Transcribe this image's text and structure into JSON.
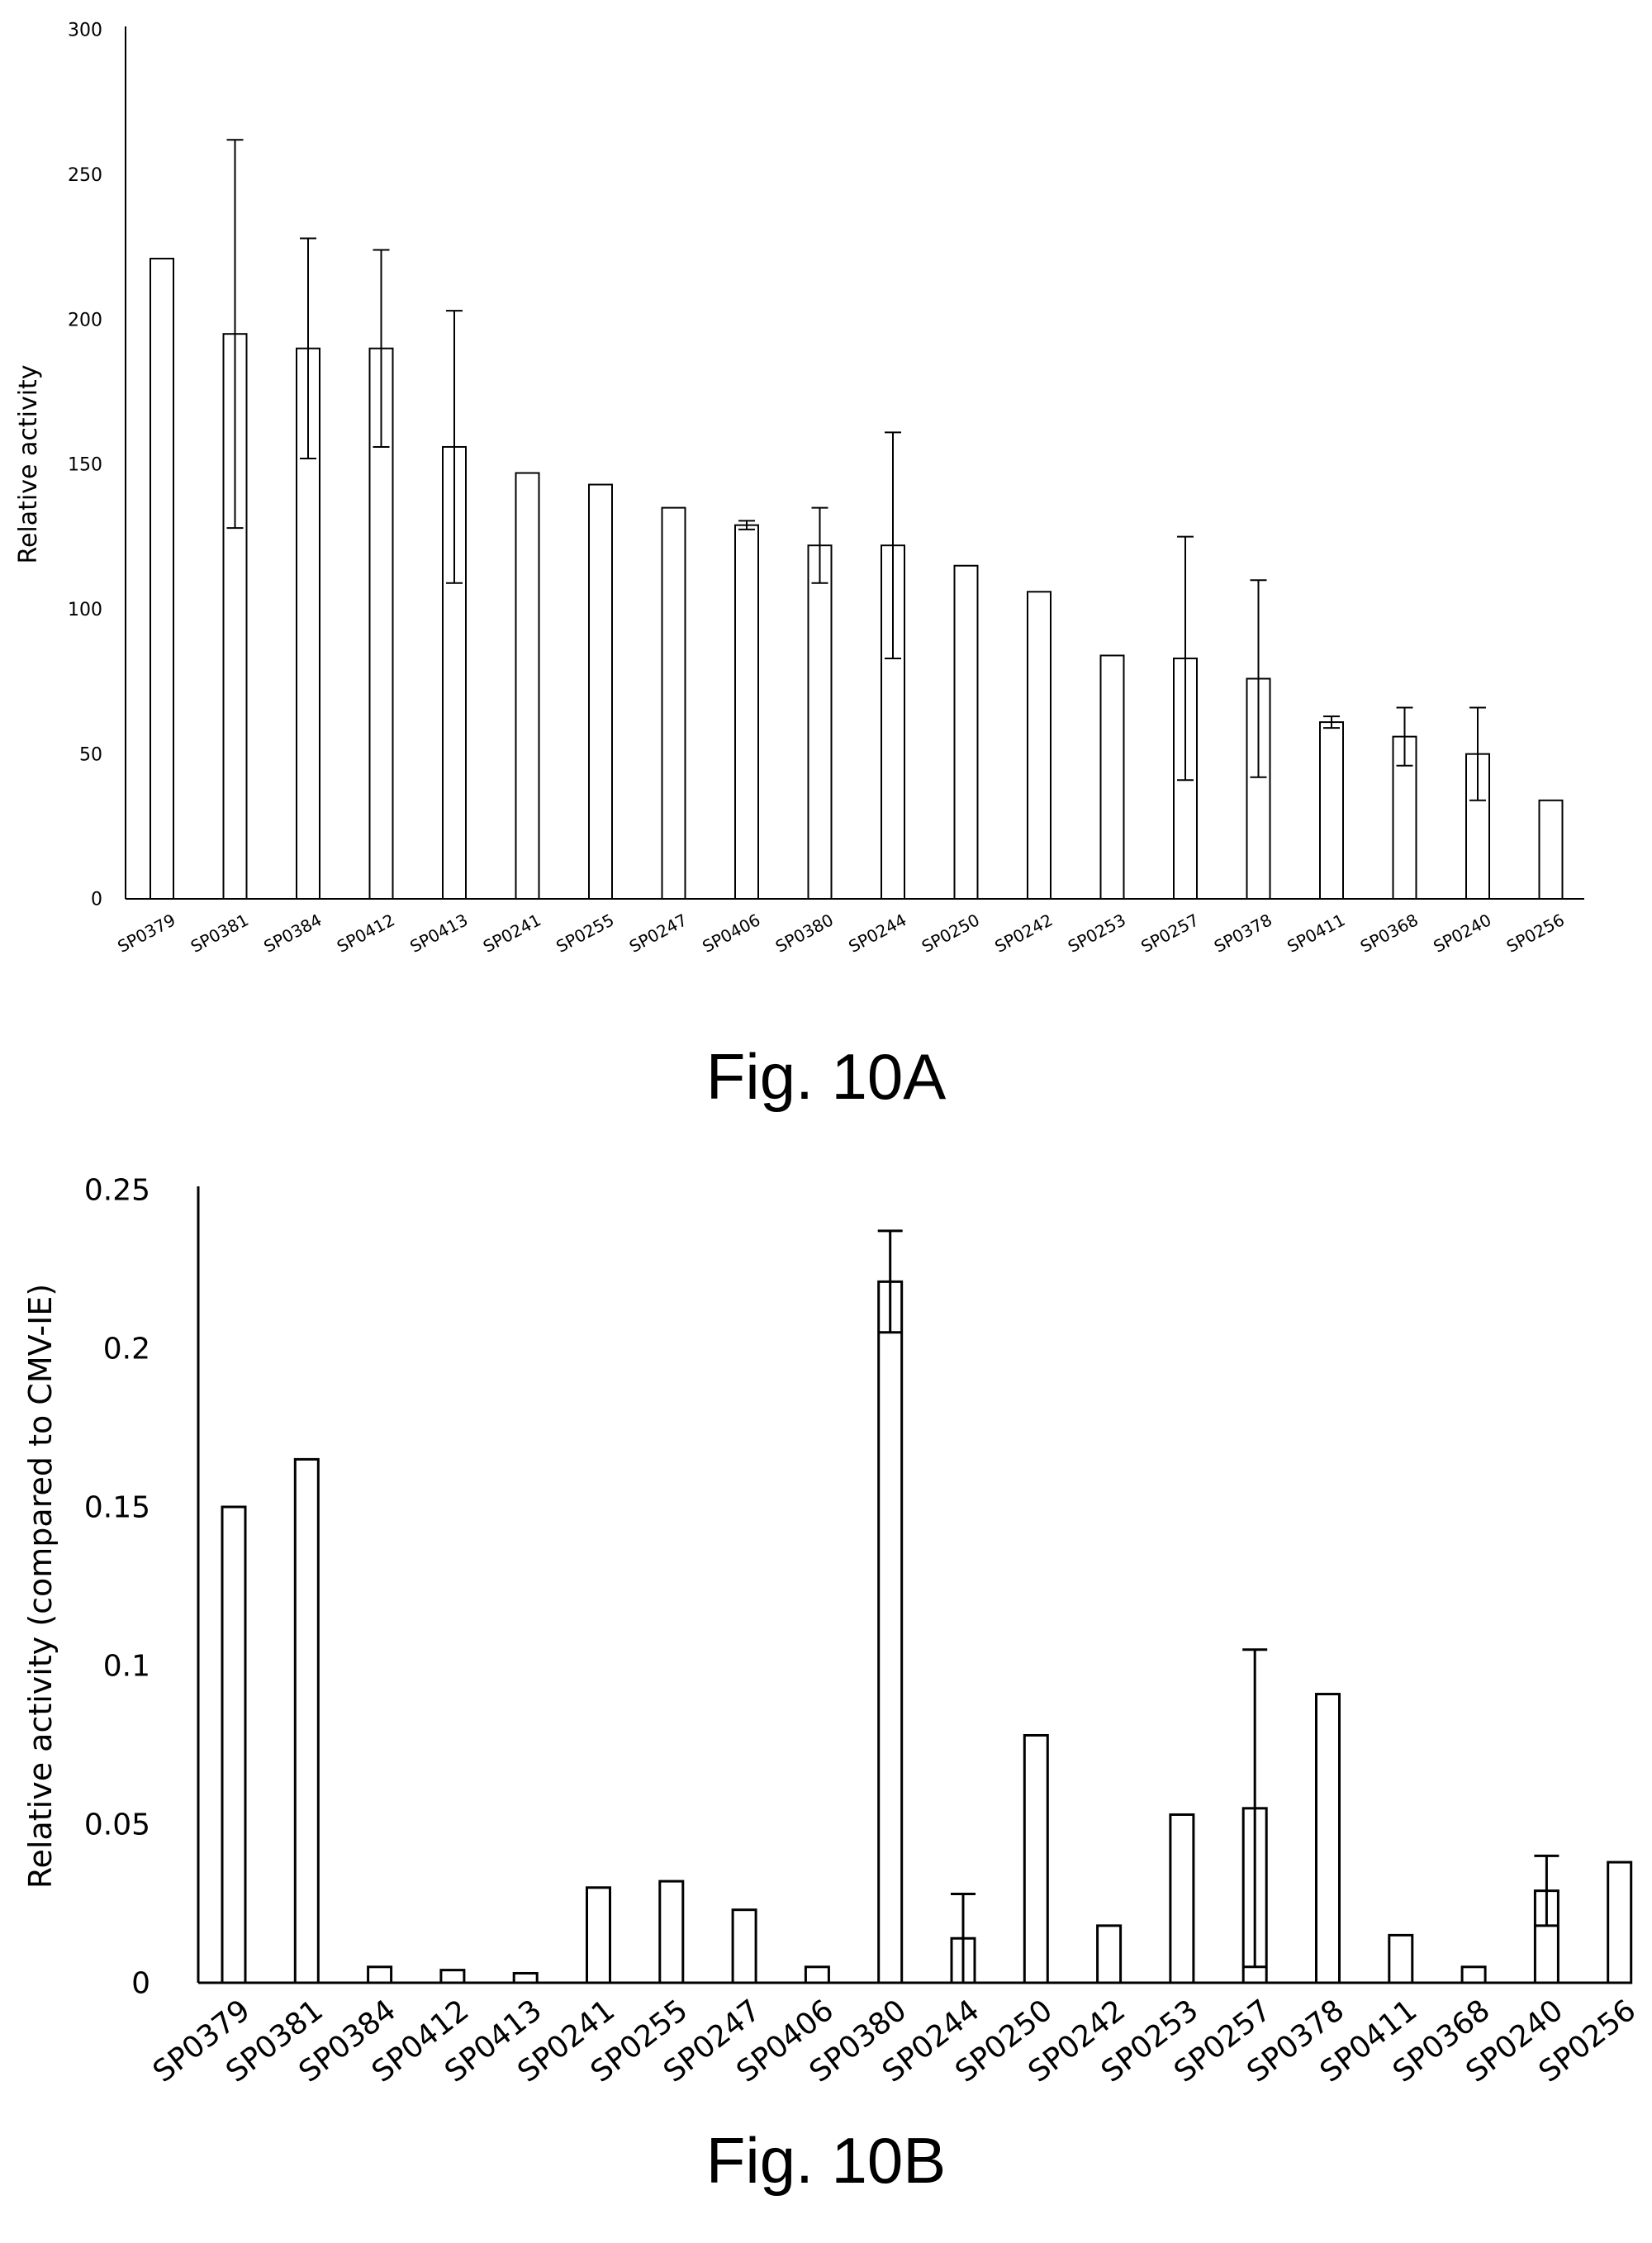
{
  "figures": [
    {
      "caption": "Fig. 10A"
    },
    {
      "caption": "Fig. 10B"
    }
  ],
  "chart_data": [
    {
      "type": "bar",
      "title": "",
      "xlabel": "",
      "ylabel": "Relative activity",
      "ylim": [
        0,
        300
      ],
      "yticks": [
        "0",
        "50",
        "100",
        "150",
        "200",
        "250",
        "300"
      ],
      "grid": false,
      "categories": [
        "SP0379",
        "SP0381",
        "SP0384",
        "SP0412",
        "SP0413",
        "SP0241",
        "SP0255",
        "SP0247",
        "SP0406",
        "SP0380",
        "SP0244",
        "SP0250",
        "SP0242",
        "SP0253",
        "SP0257",
        "SP0378",
        "SP0411",
        "SP0368",
        "SP0240",
        "SP0256"
      ],
      "values": [
        221,
        195,
        190,
        190,
        156,
        147,
        143,
        135,
        129,
        122,
        122,
        115,
        106,
        84,
        83,
        76,
        61,
        56,
        50,
        34
      ],
      "error": [
        null,
        67,
        38,
        34,
        47,
        null,
        null,
        null,
        1.5,
        13,
        39,
        null,
        null,
        null,
        42,
        34,
        2,
        10,
        16,
        null
      ]
    },
    {
      "type": "bar",
      "title": "",
      "xlabel": "",
      "ylabel": "Relative activity (compared to CMV-IE)",
      "ylim": [
        0,
        0.25
      ],
      "yticks": [
        "0",
        "0.05",
        "0.1",
        "0.15",
        "0.2",
        "0.25"
      ],
      "grid": false,
      "categories": [
        "SP0379",
        "SP0381",
        "SP0384",
        "SP0412",
        "SP0413",
        "SP0241",
        "SP0255",
        "SP0247",
        "SP0406",
        "SP0380",
        "SP0244",
        "SP0250",
        "SP0242",
        "SP0253",
        "SP0257",
        "SP0378",
        "SP0411",
        "SP0368",
        "SP0240",
        "SP0256"
      ],
      "values": [
        0.15,
        0.165,
        0.005,
        0.004,
        0.003,
        0.03,
        0.032,
        0.023,
        0.005,
        0.221,
        0.014,
        0.078,
        0.018,
        0.053,
        0.055,
        0.091,
        0.015,
        0.005,
        0.029,
        0.038
      ],
      "error": [
        null,
        null,
        null,
        null,
        null,
        null,
        null,
        null,
        null,
        0.016,
        0.014,
        null,
        null,
        null,
        0.05,
        null,
        null,
        null,
        0.011,
        null
      ]
    }
  ]
}
